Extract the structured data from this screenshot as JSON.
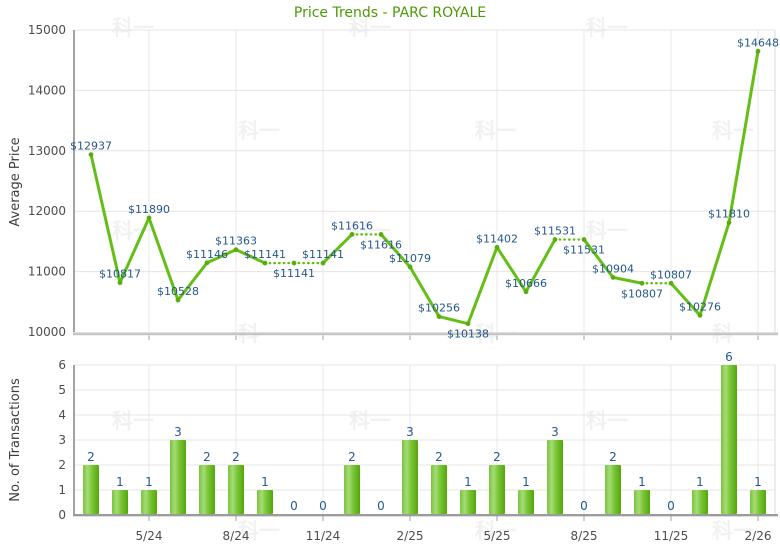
{
  "page": {
    "background": "#FFFFFF",
    "watermark_text": "科一"
  },
  "axis": {
    "tick_label_color": "#4D4D4D",
    "axis_title_color": "#3D3D3D",
    "hgrid_color": "#E4E4E4",
    "vgrid_color": "#EAEAEA",
    "border_color": "#DBDBDB",
    "axis_line_color": "#A3A3A3",
    "tick_mark_color": "#A0A0A0"
  },
  "chart_data": [
    {
      "type": "line",
      "title": "Price Trends - PARC ROYALE",
      "title_color": "#4C9A06",
      "xlabel": "",
      "ylabel": "Average Price",
      "ylim": [
        10000,
        15000
      ],
      "yticks": [
        "10000",
        "11000",
        "12000",
        "13000",
        "14000",
        "15000"
      ],
      "x_tick_labels": [
        "5/24",
        "8/24",
        "11/24",
        "2/25",
        "5/25",
        "8/25",
        "11/25",
        "2/26"
      ],
      "x_tick_indices": [
        2,
        5,
        8,
        11,
        14,
        17,
        20,
        23
      ],
      "values": [
        12937,
        10817,
        11890,
        10528,
        11146,
        11363,
        11141,
        11141,
        11141,
        11616,
        11616,
        11079,
        10256,
        10138,
        11402,
        10666,
        11531,
        11531,
        10904,
        10807,
        10807,
        10276,
        11810,
        14648
      ],
      "point_labels": [
        "$12937",
        "$10817",
        "$11890",
        "$10528",
        "$11146",
        "$11363",
        "$11141",
        "$11141",
        "$11141",
        "$11616",
        "$11616",
        "$11079",
        "$10256",
        "$10138",
        "$11402",
        "$10666",
        "$11531",
        "$11531",
        "$10904",
        "$10807",
        "$10807",
        "$10276",
        "$11810",
        "$14648"
      ],
      "label_side": [
        "above",
        "above",
        "above",
        "above",
        "above",
        "above",
        "above",
        "below",
        "above",
        "above",
        "below",
        "above",
        "above",
        "below",
        "above",
        "above",
        "above",
        "below",
        "above",
        "below",
        "above",
        "above",
        "above",
        "above"
      ],
      "dotted_segment_start_indices": [
        6,
        7,
        9,
        16,
        19
      ],
      "line_color": "#63BF16",
      "marker_color": "#59AC0E",
      "point_label_color": "#27588A",
      "grid": true,
      "legend": "none"
    },
    {
      "type": "bar",
      "title": "",
      "xlabel": "",
      "ylabel": "No. of Transactions",
      "ylim": [
        0,
        6
      ],
      "yticks": [
        "0",
        "1",
        "2",
        "3",
        "4",
        "5",
        "6"
      ],
      "x_tick_labels": [
        "5/24",
        "8/24",
        "11/24",
        "2/25",
        "5/25",
        "8/25",
        "11/25",
        "2/26"
      ],
      "x_tick_indices": [
        2,
        5,
        8,
        11,
        14,
        17,
        20,
        23
      ],
      "values": [
        2,
        1,
        1,
        3,
        2,
        2,
        1,
        0,
        0,
        2,
        0,
        3,
        2,
        1,
        2,
        1,
        3,
        0,
        2,
        1,
        0,
        1,
        6,
        1
      ],
      "bar_value_labels": [
        "2",
        "1",
        "1",
        "3",
        "2",
        "2",
        "1",
        "0",
        "0",
        "2",
        "0",
        "3",
        "2",
        "1",
        "2",
        "1",
        "3",
        "0",
        "2",
        "1",
        "0",
        "1",
        "6",
        "1"
      ],
      "bar_gradient": [
        "#79C33E",
        "#A6DC76",
        "#7CC73C",
        "#54A60A"
      ],
      "bar_value_color": "#27588A",
      "grid": true,
      "legend": "none"
    }
  ]
}
